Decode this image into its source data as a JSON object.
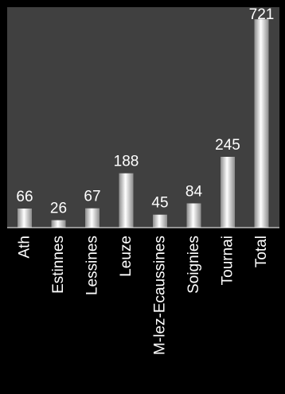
{
  "colors": {
    "background": "#000000",
    "plot_area": "#404040",
    "bar_light": "#ffffff",
    "bar_dark": "#8c8c8c",
    "text": "#ffffff",
    "axis": "#ffffff"
  },
  "chart_data": {
    "type": "bar",
    "title": "",
    "xlabel": "",
    "ylabel": "",
    "categories": [
      "Ath",
      "Estinnes",
      "Lessines",
      "Leuze",
      "M-lez-Ecaussines",
      "Soignies",
      "Tournai",
      "Total"
    ],
    "values": [
      66,
      26,
      67,
      188,
      45,
      84,
      245,
      721
    ],
    "ylim": [
      0,
      760
    ],
    "grid": false,
    "legend": "none",
    "data_labels": true,
    "x_tick_rotation": -90
  }
}
